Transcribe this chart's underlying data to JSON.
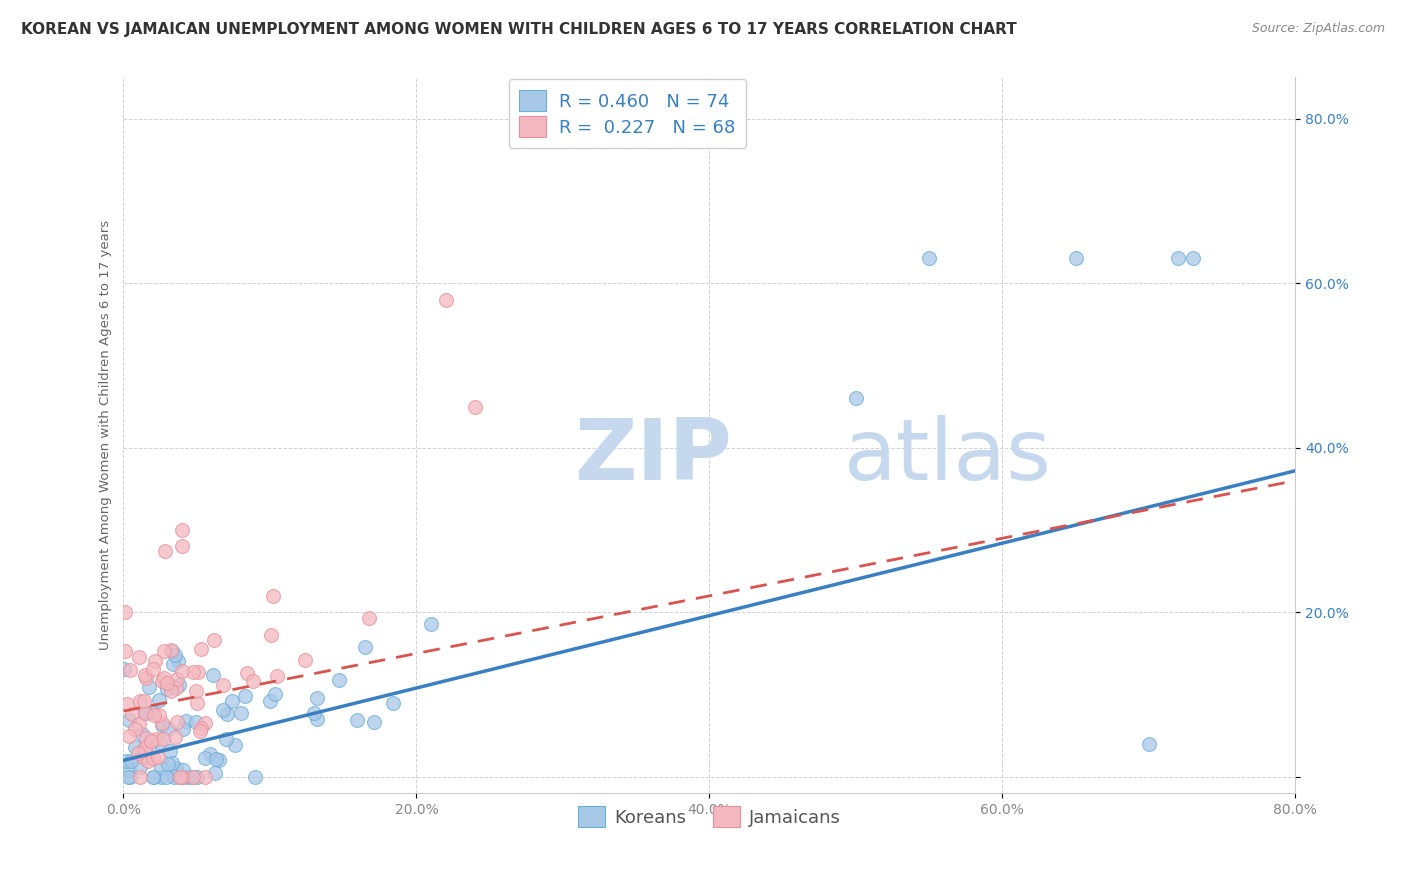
{
  "title": "KOREAN VS JAMAICAN UNEMPLOYMENT AMONG WOMEN WITH CHILDREN AGES 6 TO 17 YEARS CORRELATION CHART",
  "source": "Source: ZipAtlas.com",
  "ylabel": "Unemployment Among Women with Children Ages 6 to 17 years",
  "xlim": [
    0.0,
    0.8
  ],
  "ylim": [
    -0.02,
    0.85
  ],
  "xticks": [
    0.0,
    0.2,
    0.4,
    0.6,
    0.8
  ],
  "xticklabels": [
    "0.0%",
    "20.0%",
    "40.0%",
    "60.0%",
    "80.0%"
  ],
  "yticks": [
    0.0,
    0.2,
    0.4,
    0.6,
    0.8
  ],
  "yticklabels": [
    "",
    "20.0%",
    "40.0%",
    "60.0%",
    "80.0%"
  ],
  "korean_color": "#a8c8e8",
  "korean_edge_color": "#6baed6",
  "jamaican_color": "#f4b8c0",
  "jamaican_edge_color": "#e8909a",
  "korean_line_color": "#3a7fc1",
  "jamaican_line_color": "#d9534f",
  "korean_R": 0.46,
  "korean_N": 74,
  "jamaican_R": 0.227,
  "jamaican_N": 68,
  "watermark_zip": "ZIP",
  "watermark_atlas": "atlas",
  "legend_korean_label": "Koreans",
  "legend_jamaican_label": "Jamaicans",
  "background_color": "#ffffff",
  "grid_color": "#cccccc",
  "axis_color": "#cccccc",
  "tick_color_x": "#888888",
  "tick_color_y": "#3a7fc1",
  "title_fontsize": 11,
  "label_fontsize": 9.5,
  "tick_fontsize": 10,
  "legend_fontsize": 13,
  "watermark_fontsize_zip": 62,
  "watermark_fontsize_atlas": 62,
  "korean_line_slope": 0.44,
  "korean_line_intercept": 0.02,
  "jamaican_line_slope": 0.35,
  "jamaican_line_intercept": 0.08
}
